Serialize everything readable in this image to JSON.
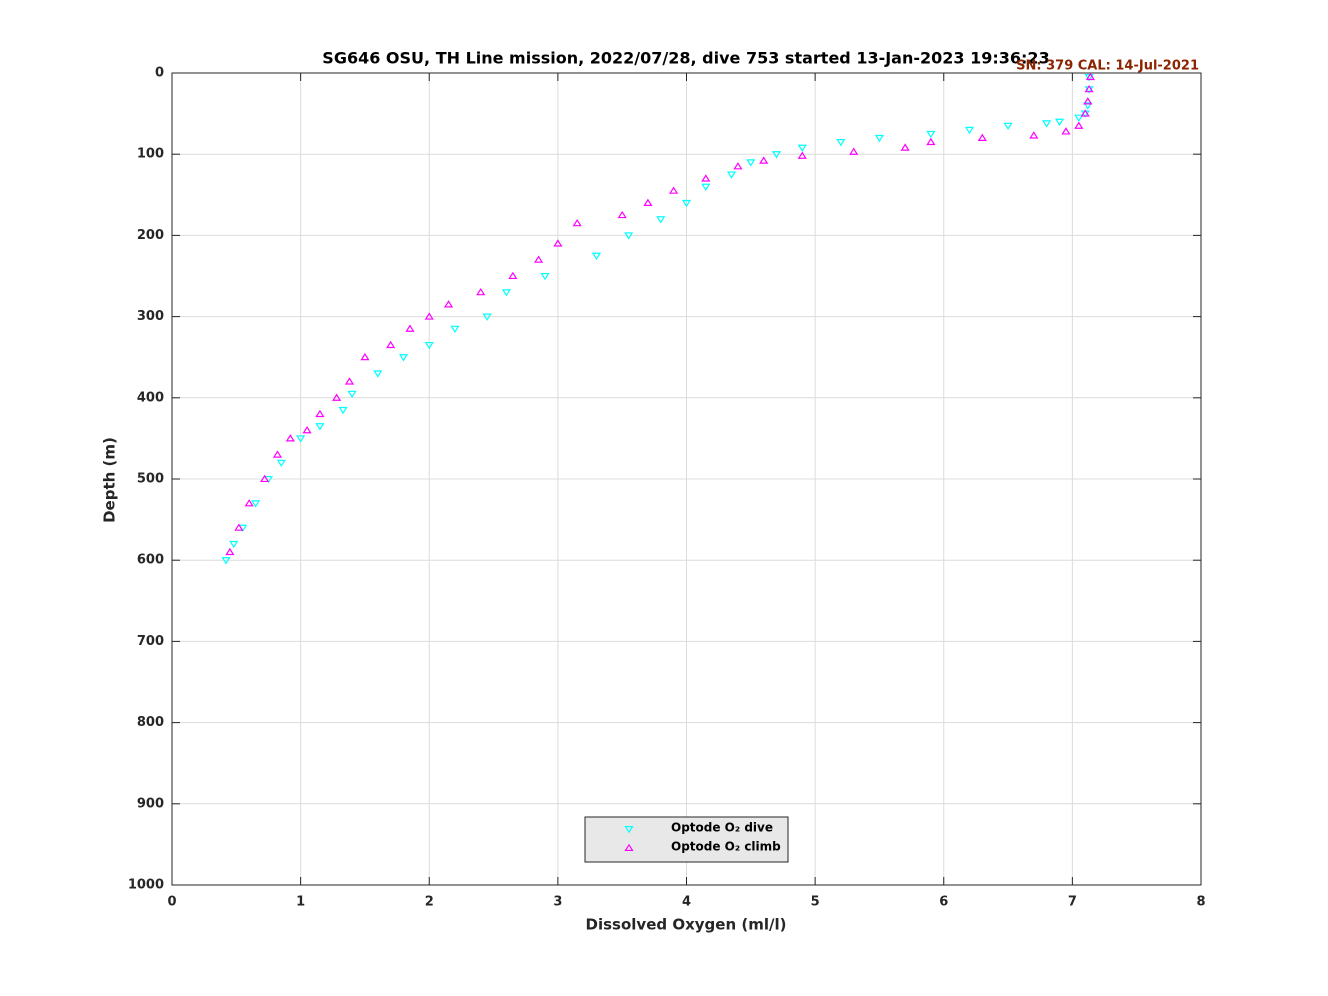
{
  "chart_data": {
    "type": "scatter",
    "title": "SG646 OSU, TH Line mission, 2022/07/28, dive 753 started 13-Jan-2023 19:36:23",
    "annotation": "SN: 379  CAL: 14-Jul-2021",
    "x_label": "Dissolved Oxygen (ml/l)",
    "y_label": "Depth (m)",
    "xlim": [
      0,
      8
    ],
    "xticks": [
      0,
      1,
      2,
      3,
      4,
      5,
      6,
      7,
      8
    ],
    "ylim": [
      0,
      1000
    ],
    "yticks": [
      0,
      100,
      200,
      300,
      400,
      500,
      600,
      700,
      800,
      900,
      1000
    ],
    "y_reversed": true,
    "grid": true,
    "legend_position": "lower center",
    "series": [
      {
        "name": "Optode O₂ dive",
        "color": "#00ffff",
        "marker": "v",
        "x": [
          7.13,
          7.13,
          7.12,
          7.1,
          7.05,
          6.9,
          6.8,
          6.5,
          6.2,
          5.9,
          5.5,
          5.2,
          4.9,
          4.7,
          4.5,
          4.35,
          4.15,
          4.0,
          3.8,
          3.55,
          3.3,
          2.9,
          2.6,
          2.45,
          2.2,
          2.0,
          1.8,
          1.6,
          1.4,
          1.33,
          1.15,
          1.0,
          0.85,
          0.75,
          0.65,
          0.55,
          0.48,
          0.42
        ],
        "y": [
          5,
          20,
          40,
          50,
          55,
          60,
          62,
          65,
          70,
          75,
          80,
          85,
          92,
          100,
          110,
          125,
          140,
          160,
          180,
          200,
          225,
          250,
          270,
          300,
          315,
          335,
          350,
          370,
          395,
          415,
          435,
          450,
          480,
          500,
          530,
          560,
          580,
          600
        ]
      },
      {
        "name": "Optode O₂ climb",
        "color": "#ff00ff",
        "marker": "^",
        "x": [
          0.45,
          0.52,
          0.6,
          0.72,
          0.82,
          0.92,
          1.05,
          1.15,
          1.28,
          1.38,
          1.5,
          1.7,
          1.85,
          2.0,
          2.15,
          2.4,
          2.65,
          2.85,
          3.0,
          3.15,
          3.5,
          3.7,
          3.9,
          4.15,
          4.4,
          4.6,
          4.9,
          5.3,
          5.7,
          5.9,
          6.3,
          6.7,
          6.95,
          7.05,
          7.1,
          7.12,
          7.13,
          7.14
        ],
        "y": [
          590,
          560,
          530,
          500,
          470,
          450,
          440,
          420,
          400,
          380,
          350,
          335,
          315,
          300,
          285,
          270,
          250,
          230,
          210,
          185,
          175,
          160,
          145,
          130,
          115,
          108,
          102,
          97,
          92,
          85,
          80,
          77,
          72,
          65,
          50,
          35,
          20,
          5
        ]
      }
    ]
  }
}
